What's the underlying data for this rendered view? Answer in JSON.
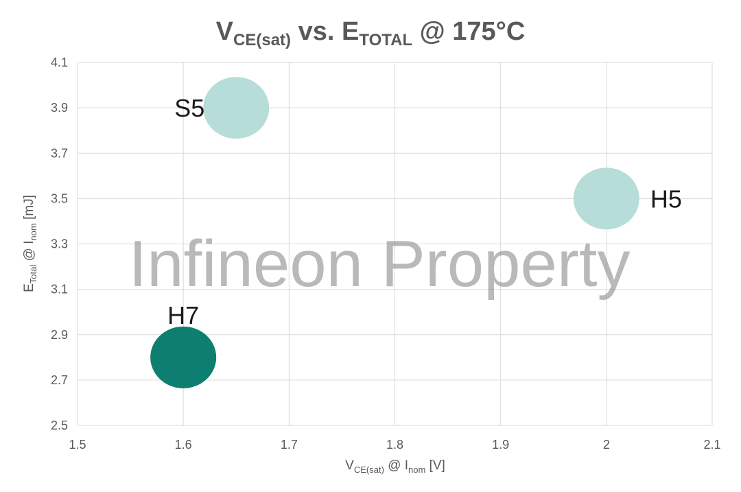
{
  "chart_data": {
    "type": "scatter",
    "title": {
      "v": "V",
      "v_sub": "CE(sat)",
      "mid": " vs. E",
      "e_sub": "TOTAL",
      "end": " @ 175°C"
    },
    "xlabel": {
      "v": "V",
      "v_sub": "CE(sat)",
      "mid": " @ I",
      "i_sub": "nom",
      "unit": " [V]"
    },
    "ylabel": {
      "e": "E",
      "e_sub": "Total",
      "mid": " @ I",
      "i_sub": "nom",
      "unit": " [mJ]"
    },
    "xlim": [
      1.5,
      2.1
    ],
    "ylim": [
      2.5,
      4.1
    ],
    "x_ticks": [
      "1.5",
      "1.6",
      "1.7",
      "1.8",
      "1.9",
      "2",
      "2.1"
    ],
    "y_ticks": [
      "2.5",
      "2.7",
      "2.9",
      "3.1",
      "3.3",
      "3.5",
      "3.7",
      "3.9",
      "4.1"
    ],
    "grid": true,
    "legend": "none",
    "points": [
      {
        "label": "S5",
        "x": 1.65,
        "y": 3.9,
        "color": "#b7ddd8",
        "label_side": "left"
      },
      {
        "label": "H5",
        "x": 2.0,
        "y": 3.5,
        "color": "#b7ddd8",
        "label_side": "right"
      },
      {
        "label": "H7",
        "x": 1.6,
        "y": 2.8,
        "color": "#0e7e70",
        "label_side": "top"
      }
    ],
    "watermark": "Infineon Property"
  }
}
